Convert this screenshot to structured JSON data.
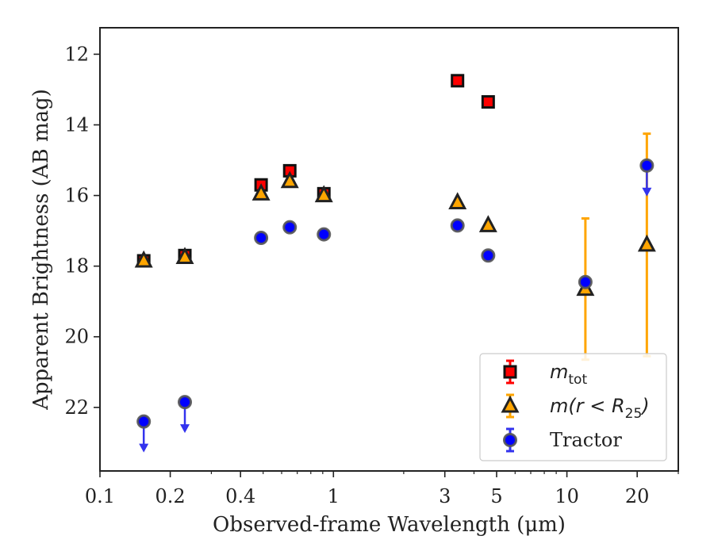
{
  "chart_data": {
    "type": "scatter",
    "title": "",
    "xlabel": "Observed-frame Wavelength (μm)",
    "ylabel": "Apparent Brightness (AB mag)",
    "xscale": "log",
    "xlim": [
      0.1,
      30
    ],
    "ylim": [
      23.8,
      11.25
    ],
    "y_inverted": true,
    "xticks": [
      {
        "value": 0.1,
        "label": "0.1"
      },
      {
        "value": 0.2,
        "label": "0.2"
      },
      {
        "value": 0.4,
        "label": "0.4"
      },
      {
        "value": 1,
        "label": "1"
      },
      {
        "value": 3,
        "label": "3"
      },
      {
        "value": 5,
        "label": "5"
      },
      {
        "value": 10,
        "label": "10"
      },
      {
        "value": 20,
        "label": "20"
      }
    ],
    "yticks": [
      {
        "value": 12,
        "label": "12"
      },
      {
        "value": 14,
        "label": "14"
      },
      {
        "value": 16,
        "label": "16"
      },
      {
        "value": 18,
        "label": "18"
      },
      {
        "value": 20,
        "label": "20"
      },
      {
        "value": 22,
        "label": "22"
      }
    ],
    "legend_position": "lower-right",
    "grid": false,
    "series": [
      {
        "name": "m_tot",
        "legend_label_base": "m",
        "legend_label_sub": "tot",
        "marker": "square",
        "color": "#ff0000",
        "edge": "#111111",
        "errcolor": "#ff0000",
        "points": [
          {
            "x": 0.154,
            "y": 17.85,
            "err": 0.1
          },
          {
            "x": 0.231,
            "y": 17.7,
            "err": 0.1
          },
          {
            "x": 0.49,
            "y": 15.7,
            "err": 0.1
          },
          {
            "x": 0.65,
            "y": 15.3,
            "err": 0.1
          },
          {
            "x": 0.91,
            "y": 15.95,
            "err": 0.1
          },
          {
            "x": 3.4,
            "y": 12.75,
            "err": 0.05
          },
          {
            "x": 4.6,
            "y": 13.35,
            "err": 0.05
          }
        ]
      },
      {
        "name": "m(r < R25)",
        "legend_label_base": "m(r < R",
        "legend_label_sub": "25",
        "legend_label_tail": ")",
        "marker": "triangle",
        "color": "#ffa500",
        "edge": "#222222",
        "errcolor": "#ffa500",
        "points": [
          {
            "x": 0.154,
            "y": 17.85,
            "err": 0.05
          },
          {
            "x": 0.231,
            "y": 17.75,
            "err": 0.05
          },
          {
            "x": 0.49,
            "y": 15.95,
            "err": 0.05
          },
          {
            "x": 0.65,
            "y": 15.6,
            "err": 0.05
          },
          {
            "x": 0.91,
            "y": 16.0,
            "err": 0.05
          },
          {
            "x": 3.4,
            "y": 16.2,
            "err": 0.05
          },
          {
            "x": 4.6,
            "y": 16.85,
            "err": 0.05
          },
          {
            "x": 12.0,
            "y": 18.65,
            "err": 2.0
          },
          {
            "x": 22.0,
            "y": 17.4,
            "err": 3.15
          }
        ]
      },
      {
        "name": "Tractor",
        "marker": "circle",
        "color": "#0000ff",
        "edge": "#555555",
        "errcolor": "#3333ee",
        "points": [
          {
            "x": 0.154,
            "y": 22.4,
            "err": 0.0,
            "upper_limit": true
          },
          {
            "x": 0.231,
            "y": 21.85,
            "err": 0.0,
            "upper_limit": true
          },
          {
            "x": 0.49,
            "y": 17.2,
            "err": 0.05
          },
          {
            "x": 0.65,
            "y": 16.9,
            "err": 0.05
          },
          {
            "x": 0.91,
            "y": 17.1,
            "err": 0.05
          },
          {
            "x": 3.4,
            "y": 16.85,
            "err": 0.05
          },
          {
            "x": 4.6,
            "y": 17.7,
            "err": 0.05
          },
          {
            "x": 12.0,
            "y": 18.45,
            "err": 0.1
          },
          {
            "x": 22.0,
            "y": 15.15,
            "err": 0.0,
            "upper_limit": true
          }
        ]
      }
    ]
  }
}
